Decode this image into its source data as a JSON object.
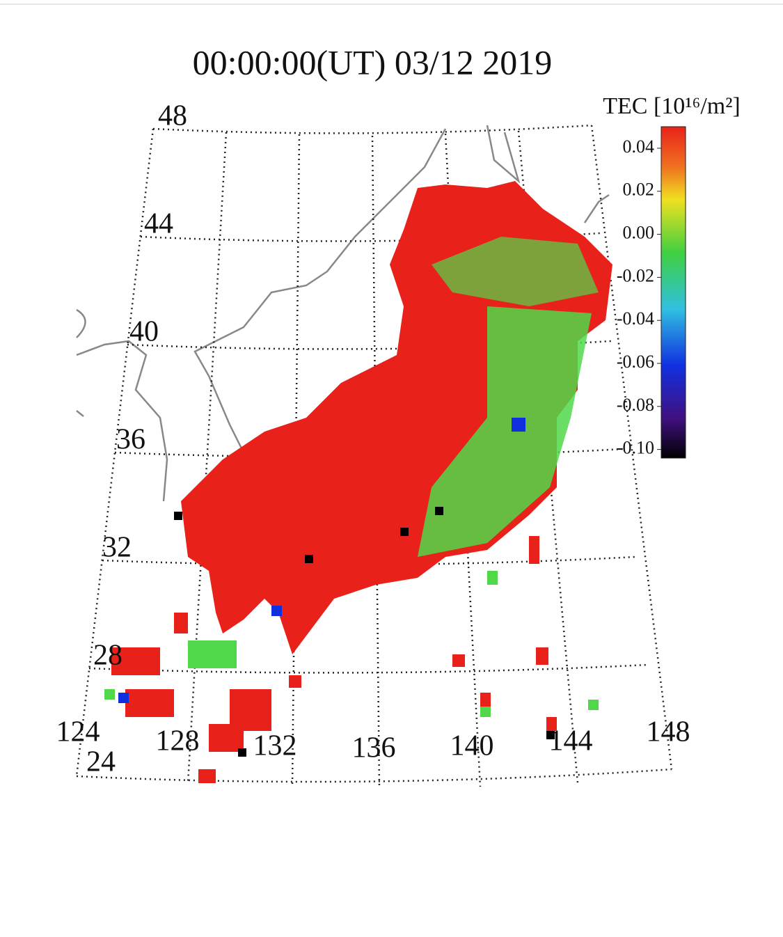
{
  "map": {
    "title": "00:00:00(UT)  03/12 2019",
    "latitude_labels": [
      "48",
      "44",
      "40",
      "36",
      "32",
      "28",
      "24"
    ],
    "longitude_labels": [
      "124",
      "128",
      "132",
      "136",
      "140",
      "144",
      "148"
    ],
    "colorbar": {
      "label": "TEC [10¹⁶/m²]",
      "range": [
        -0.104,
        0.05
      ],
      "ticks": [
        {
          "value": 0.04,
          "label": "0.04"
        },
        {
          "value": 0.02,
          "label": "0.02"
        },
        {
          "value": 0.0,
          "label": "0.00"
        },
        {
          "value": -0.02,
          "label": "-0.02"
        },
        {
          "value": -0.04,
          "label": "-0.04"
        },
        {
          "value": -0.06,
          "label": "-0.06"
        },
        {
          "value": -0.08,
          "label": "-0.08"
        },
        {
          "value": -0.1,
          "label": "-0.10"
        }
      ]
    }
  }
}
